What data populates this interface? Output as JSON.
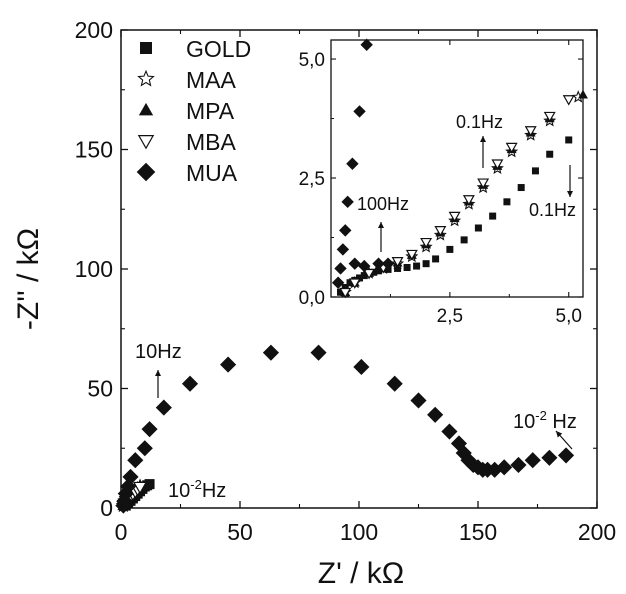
{
  "chart_data": [
    {
      "type": "scatter",
      "xlabel": "Z' / kΩ",
      "ylabel": "-Z'' / kΩ",
      "xlim": [
        0,
        200
      ],
      "ylim": [
        0,
        200
      ],
      "xticks": [
        "0",
        "50",
        "100",
        "150",
        "200"
      ],
      "yticks": [
        "0",
        "50",
        "100",
        "150",
        "200"
      ],
      "legend_position": "top-left",
      "series": [
        {
          "name": "GOLD",
          "marker": "square",
          "points": [
            [
              2,
              1
            ],
            [
              3,
              2
            ],
            [
              4,
              3
            ],
            [
              5,
              4
            ],
            [
              6,
              5
            ],
            [
              7,
              6
            ],
            [
              8,
              7
            ],
            [
              9,
              8
            ],
            [
              10,
              9
            ],
            [
              11,
              9.5
            ],
            [
              12,
              10
            ]
          ]
        },
        {
          "name": "MAA",
          "marker": "star",
          "points": [
            [
              1,
              1
            ],
            [
              1.5,
              2
            ],
            [
              2,
              3
            ],
            [
              3,
              4
            ],
            [
              4,
              5
            ],
            [
              5,
              6
            ],
            [
              6,
              7
            ],
            [
              7,
              8
            ],
            [
              8,
              9
            ]
          ]
        },
        {
          "name": "MPA",
          "marker": "triangle-up",
          "points": [
            [
              1,
              1
            ],
            [
              1.5,
              2
            ],
            [
              2,
              3
            ],
            [
              3,
              4
            ],
            [
              4,
              5
            ],
            [
              5,
              6
            ],
            [
              6,
              7
            ],
            [
              7,
              8
            ],
            [
              8,
              9
            ]
          ]
        },
        {
          "name": "MBA",
          "marker": "triangle-down",
          "points": [
            [
              1,
              0.8
            ],
            [
              1.5,
              1.8
            ],
            [
              2,
              2.8
            ],
            [
              3,
              3.8
            ],
            [
              4,
              4.8
            ],
            [
              5,
              5.8
            ],
            [
              6,
              6.8
            ],
            [
              7,
              7.8
            ],
            [
              8,
              8.8
            ]
          ]
        },
        {
          "name": "MUA",
          "marker": "diamond",
          "points": [
            [
              1,
              1
            ],
            [
              1.5,
              3
            ],
            [
              2,
              6
            ],
            [
              3,
              9
            ],
            [
              4,
              13
            ],
            [
              6,
              20
            ],
            [
              10,
              25
            ],
            [
              12,
              33
            ],
            [
              18,
              42
            ],
            [
              29,
              52
            ],
            [
              45,
              60
            ],
            [
              63,
              65
            ],
            [
              83,
              65
            ],
            [
              101,
              59
            ],
            [
              115,
              52
            ],
            [
              125,
              45
            ],
            [
              132,
              39
            ],
            [
              138,
              32
            ],
            [
              142,
              27
            ],
            [
              144,
              23
            ],
            [
              146,
              20
            ],
            [
              148,
              18
            ],
            [
              150,
              17
            ],
            [
              152,
              16
            ],
            [
              154,
              16
            ],
            [
              157,
              16
            ],
            [
              161,
              17
            ],
            [
              167,
              18
            ],
            [
              173,
              20
            ],
            [
              180,
              21
            ],
            [
              187,
              22
            ]
          ]
        }
      ],
      "annotations": [
        {
          "text": "10Hz",
          "at": [
            18,
            58
          ]
        },
        {
          "text": "10",
          "superscript": "-2",
          "suffix": "Hz",
          "at": [
            29,
            8
          ],
          "series": "GOLD"
        },
        {
          "text": "10",
          "superscript": "-2",
          "suffix": " Hz",
          "at": [
            180,
            30
          ],
          "series": "MUA"
        }
      ]
    },
    {
      "type": "scatter",
      "role": "inset",
      "xlim": [
        0,
        5.3
      ],
      "ylim": [
        0,
        5.4
      ],
      "xticks": [
        "2,5",
        "5,0"
      ],
      "yticks": [
        "0,0",
        "2,5",
        "5,0"
      ],
      "series": [
        {
          "name": "GOLD",
          "marker": "square",
          "points": [
            [
              0.2,
              0.1
            ],
            [
              0.3,
              0.2
            ],
            [
              0.4,
              0.3
            ],
            [
              0.5,
              0.35
            ],
            [
              0.6,
              0.4
            ],
            [
              0.7,
              0.45
            ],
            [
              0.8,
              0.5
            ],
            [
              0.9,
              0.52
            ],
            [
              1.0,
              0.55
            ],
            [
              1.2,
              0.58
            ],
            [
              1.4,
              0.6
            ],
            [
              1.6,
              0.62
            ],
            [
              1.8,
              0.65
            ],
            [
              2.0,
              0.7
            ],
            [
              2.2,
              0.8
            ],
            [
              2.5,
              1.0
            ],
            [
              2.8,
              1.2
            ],
            [
              3.1,
              1.45
            ],
            [
              3.4,
              1.7
            ],
            [
              3.7,
              2.0
            ],
            [
              4.0,
              2.3
            ],
            [
              4.3,
              2.65
            ],
            [
              4.6,
              3.0
            ],
            [
              5.0,
              3.3
            ]
          ]
        },
        {
          "name": "MAA",
          "marker": "star",
          "points": [
            [
              0.3,
              0.1
            ],
            [
              0.5,
              0.3
            ],
            [
              0.8,
              0.5
            ],
            [
              1.1,
              0.6
            ],
            [
              1.4,
              0.7
            ],
            [
              1.7,
              0.85
            ],
            [
              2.0,
              1.05
            ],
            [
              2.3,
              1.3
            ],
            [
              2.6,
              1.6
            ],
            [
              2.9,
              1.95
            ],
            [
              3.2,
              2.3
            ],
            [
              3.5,
              2.7
            ],
            [
              3.8,
              3.05
            ],
            [
              4.2,
              3.4
            ],
            [
              4.6,
              3.7
            ],
            [
              5.2,
              4.2
            ]
          ]
        },
        {
          "name": "MPA",
          "marker": "triangle-up",
          "points": [
            [
              0.3,
              0.1
            ],
            [
              0.5,
              0.3
            ],
            [
              0.8,
              0.5
            ],
            [
              1.1,
              0.6
            ],
            [
              1.4,
              0.72
            ],
            [
              1.7,
              0.88
            ],
            [
              2.0,
              1.1
            ],
            [
              2.3,
              1.35
            ],
            [
              2.6,
              1.65
            ],
            [
              2.9,
              2.0
            ],
            [
              3.2,
              2.35
            ],
            [
              3.5,
              2.75
            ],
            [
              3.8,
              3.1
            ],
            [
              4.2,
              3.45
            ],
            [
              4.6,
              3.75
            ],
            [
              5.3,
              4.25
            ]
          ]
        },
        {
          "name": "MBA",
          "marker": "triangle-down",
          "points": [
            [
              0.3,
              0.1
            ],
            [
              0.5,
              0.3
            ],
            [
              0.8,
              0.5
            ],
            [
              1.1,
              0.62
            ],
            [
              1.4,
              0.75
            ],
            [
              1.7,
              0.9
            ],
            [
              2.0,
              1.15
            ],
            [
              2.3,
              1.4
            ],
            [
              2.6,
              1.7
            ],
            [
              2.9,
              2.05
            ],
            [
              3.2,
              2.4
            ],
            [
              3.5,
              2.8
            ],
            [
              3.8,
              3.15
            ],
            [
              4.2,
              3.5
            ],
            [
              4.6,
              3.8
            ],
            [
              5.0,
              4.15
            ]
          ]
        },
        {
          "name": "MUA",
          "marker": "diamond",
          "points": [
            [
              0.15,
              0.3
            ],
            [
              0.2,
              0.6
            ],
            [
              0.25,
              1.0
            ],
            [
              0.3,
              1.4
            ],
            [
              0.35,
              2.0
            ],
            [
              0.45,
              2.8
            ],
            [
              0.6,
              3.9
            ],
            [
              0.75,
              5.3
            ],
            [
              0.5,
              0.7
            ],
            [
              0.7,
              0.65
            ],
            [
              1.0,
              0.7
            ],
            [
              1.2,
              0.7
            ]
          ]
        }
      ],
      "annotations": [
        {
          "text": "100Hz",
          "at": [
            1.3,
            1.9
          ]
        },
        {
          "text": "0.1Hz",
          "at": [
            3.4,
            3.7
          ],
          "series": "MBA"
        },
        {
          "text": "0.1Hz",
          "at": [
            5.0,
            1.7
          ],
          "series": "GOLD"
        }
      ]
    }
  ],
  "colors": {
    "marker": "#111111",
    "axis": "#111111",
    "text": "#111111"
  }
}
